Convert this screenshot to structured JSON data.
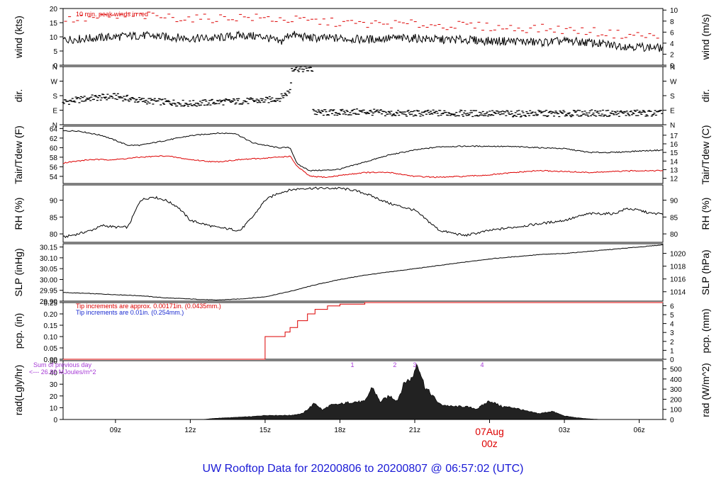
{
  "title": "UW Rooftop Data for 20200806  to  20200807 @ 06:57:02  (UTC)",
  "colors": {
    "ink": "#000000",
    "red": "#dd0000",
    "blue": "#1a2ad0",
    "purple": "#a63ad6",
    "title": "#1a1ad6"
  },
  "x_axis": {
    "ticks": [
      {
        "hour": 9,
        "label": "09z"
      },
      {
        "hour": 12,
        "label": "12z"
      },
      {
        "hour": 15,
        "label": "15z"
      },
      {
        "hour": 18,
        "label": "18z"
      },
      {
        "hour": 21,
        "label": "21z"
      },
      {
        "hour": 24,
        "label": "00z"
      },
      {
        "hour": 27,
        "label": "03z"
      },
      {
        "hour": 30,
        "label": "06z"
      }
    ],
    "date_label": "07Aug",
    "range_hours": [
      6.9,
      30.95
    ]
  },
  "chart_data": [
    {
      "id": "wind",
      "type": "line",
      "ylabel_left": "wind (kts)",
      "ylabel_right": "wind (m/s)",
      "ylim": [
        0,
        20
      ],
      "left_ticks": [
        0,
        5,
        10,
        15,
        20
      ],
      "right_ticks": [
        0,
        2,
        4,
        6,
        8,
        10
      ],
      "right_factor": 0.5144,
      "note": "10 min. peak winds in red",
      "series": [
        {
          "name": "wind",
          "color": "#000000",
          "style": "line",
          "x": [
            6.9,
            8,
            9,
            10,
            11,
            12,
            13,
            14,
            15,
            15.6,
            16,
            16.5,
            17,
            18,
            19,
            20,
            21,
            22,
            23,
            24,
            25,
            26,
            27,
            28,
            29,
            30,
            30.95
          ],
          "y": [
            9,
            9.5,
            10,
            10.5,
            10,
            9.5,
            9.5,
            10.5,
            10,
            8,
            11,
            10,
            9.5,
            9.5,
            9,
            9.5,
            9.5,
            9,
            9,
            8.5,
            8.5,
            8,
            8.5,
            8,
            7,
            6.5,
            6
          ]
        },
        {
          "name": "peak",
          "color": "#dd0000",
          "style": "dash",
          "x": [
            7,
            8,
            9,
            10,
            11,
            12,
            13,
            14,
            15,
            16,
            17,
            18,
            19,
            20,
            21,
            22,
            23,
            24,
            25,
            26,
            27,
            28,
            29,
            30,
            30.9
          ],
          "y": [
            16,
            16.5,
            17,
            17.5,
            17,
            16.5,
            16.5,
            17,
            16.5,
            16,
            15.5,
            15,
            14.5,
            14.5,
            14.5,
            14,
            14,
            13.5,
            13,
            13,
            12.5,
            12,
            11,
            10.5,
            10
          ]
        }
      ]
    },
    {
      "id": "dir",
      "type": "scatter",
      "ylabel_left": "dir.",
      "ylabel_right": "dir.",
      "ylim": [
        0,
        360
      ],
      "left_ticks": [
        0,
        90,
        180,
        270,
        360
      ],
      "left_tick_labels": [
        "N",
        "E",
        "S",
        "W",
        "N"
      ],
      "right_ticks": [
        0,
        90,
        180,
        270,
        360
      ],
      "right_tick_labels": [
        "N",
        "E",
        "S",
        "W",
        "N"
      ],
      "series": [
        {
          "name": "direction",
          "color": "#000000",
          "style": "dots",
          "x": [
            6.9,
            8,
            9,
            10,
            11,
            12,
            13,
            14,
            15,
            15.6,
            16,
            16.1,
            17,
            18,
            19,
            20,
            21,
            22,
            23,
            24,
            25,
            26,
            27,
            28,
            29,
            30,
            30.95
          ],
          "y": [
            140,
            165,
            175,
            150,
            140,
            130,
            140,
            145,
            150,
            165,
            210,
            355,
            75,
            75,
            80,
            70,
            70,
            72,
            70,
            70,
            68,
            70,
            68,
            72,
            70,
            72,
            70
          ]
        }
      ]
    },
    {
      "id": "temp",
      "type": "line",
      "ylabel_left": "Tair/Tdew (F)",
      "ylabel_right": "Tair/Tdew (C)",
      "ylim": [
        52.5,
        64.5
      ],
      "left_ticks": [
        54,
        56,
        58,
        60,
        62,
        64
      ],
      "right_ticks": [
        12,
        13,
        14,
        15,
        16,
        17
      ],
      "series": [
        {
          "name": "Tair",
          "color": "#000000",
          "style": "line",
          "x": [
            6.9,
            7.5,
            8,
            8.5,
            9,
            9.5,
            10,
            11,
            12,
            13,
            13.8,
            14.5,
            15,
            15.5,
            16,
            16.3,
            16.8,
            17.5,
            18,
            19,
            20,
            21,
            22,
            23,
            24,
            25,
            26,
            27,
            28,
            29,
            30,
            30.95
          ],
          "y": [
            63.5,
            63.5,
            63,
            62.5,
            61.5,
            60.5,
            60.5,
            61.5,
            62.5,
            63,
            63,
            61,
            60.5,
            60,
            60,
            56.5,
            55.2,
            55.3,
            55.5,
            57,
            58.5,
            59.5,
            60.2,
            60.3,
            60.3,
            60.2,
            60,
            59.8,
            59,
            59,
            59.3,
            59.5
          ]
        },
        {
          "name": "Tdew",
          "color": "#dd0000",
          "style": "line",
          "x": [
            6.9,
            7.5,
            8,
            9,
            10,
            11,
            12,
            13,
            14,
            15,
            16,
            16.3,
            16.8,
            17.5,
            18,
            19,
            20,
            21,
            22,
            23,
            24,
            25,
            26,
            27,
            28,
            29,
            30,
            30.95
          ],
          "y": [
            56.8,
            57.2,
            57.5,
            57.5,
            58,
            58.3,
            57.5,
            57,
            57.5,
            57.8,
            58.2,
            56,
            54,
            53.8,
            54.2,
            54.8,
            54.8,
            54,
            53.8,
            54,
            54.3,
            54.8,
            55.2,
            55,
            54.8,
            55,
            55.2,
            55.2
          ]
        }
      ]
    },
    {
      "id": "rh",
      "type": "line",
      "ylabel_left": "RH (%)",
      "ylabel_right": "RH (%)",
      "ylim": [
        77.5,
        94.5
      ],
      "left_ticks": [
        80,
        85,
        90
      ],
      "right_ticks": [
        80,
        85,
        90
      ],
      "series": [
        {
          "name": "RH",
          "color": "#000000",
          "style": "line",
          "x": [
            6.9,
            7.5,
            8,
            8.5,
            9,
            9.5,
            10,
            10.5,
            11,
            11.5,
            12,
            12.5,
            13,
            13.5,
            14,
            14.5,
            15,
            15.5,
            16,
            16.5,
            17,
            17.5,
            18,
            18.5,
            19,
            19.5,
            20,
            21,
            21.5,
            22,
            23,
            24,
            25,
            25.5,
            26,
            27,
            28,
            29,
            29.5,
            30,
            30.5,
            30.95
          ],
          "y": [
            79,
            80,
            81,
            82.5,
            82,
            82,
            90,
            91,
            90,
            88,
            84,
            83,
            82,
            81.5,
            81,
            85,
            90,
            92,
            93,
            93.5,
            93.5,
            93.5,
            93.5,
            93,
            92,
            90.5,
            89,
            87,
            84,
            81,
            79.5,
            81,
            82,
            82.5,
            83,
            84,
            86,
            86,
            87.5,
            87,
            86,
            86
          ]
        }
      ]
    },
    {
      "id": "slp",
      "type": "line",
      "ylabel_left": "SLP (inHg)",
      "ylabel_right": "SLP (hPa)",
      "ylim": [
        29.9,
        30.165
      ],
      "left_ticks": [
        29.9,
        29.95,
        30.0,
        30.05,
        30.1,
        30.15
      ],
      "left_tick_labels": [
        "29.90",
        "29.95",
        "30.00",
        "30.05",
        "30.10",
        "30.15"
      ],
      "right_ticks": [
        1014,
        1016,
        1018,
        1020
      ],
      "right_factor": 33.8639,
      "series": [
        {
          "name": "SLP",
          "color": "#000000",
          "style": "line",
          "x": [
            6.9,
            8,
            9,
            10,
            11,
            12,
            13,
            14,
            15,
            16,
            17,
            18,
            19,
            20,
            21,
            22,
            23,
            24,
            25,
            26,
            27,
            28,
            29,
            30,
            30.95
          ],
          "y": [
            29.94,
            29.935,
            29.93,
            29.925,
            29.915,
            29.91,
            29.905,
            29.91,
            29.92,
            29.945,
            29.975,
            30.0,
            30.02,
            30.035,
            30.05,
            30.065,
            30.08,
            30.095,
            30.105,
            30.115,
            30.12,
            30.13,
            30.14,
            30.15,
            30.16
          ]
        }
      ]
    },
    {
      "id": "pcp",
      "type": "line",
      "ylabel_left": "pcp. (in)",
      "ylabel_right": "pcp. (mm)",
      "ylim": [
        0,
        0.25
      ],
      "left_ticks": [
        0,
        0.05,
        0.1,
        0.15,
        0.2,
        0.25
      ],
      "left_tick_labels": [
        "0.00",
        "0.05",
        "0.10",
        "0.15",
        "0.20",
        "0.25"
      ],
      "right_ticks": [
        0,
        1,
        2,
        3,
        4,
        5,
        6
      ],
      "right_factor": 25.4,
      "notes": [
        {
          "text": "Tip increments are approx. 0.00171in. (0.0435mm.)",
          "color": "#dd0000"
        },
        {
          "text": "Tip increments are 0.01in. (0.254mm.)",
          "color": "#1a2ad0"
        }
      ],
      "series": [
        {
          "name": "precip",
          "color": "#dd0000",
          "style": "step",
          "x": [
            6.9,
            14.8,
            15.0,
            15.5,
            15.8,
            16.0,
            16.3,
            16.7,
            17.0,
            17.5,
            18.0,
            18.4,
            19.0,
            30.95
          ],
          "y": [
            0,
            0,
            0.1,
            0.1,
            0.12,
            0.14,
            0.17,
            0.2,
            0.22,
            0.235,
            0.243,
            0.243,
            0.25,
            0.25
          ]
        }
      ]
    },
    {
      "id": "rad",
      "type": "area",
      "ylabel_left": "rad(Lgly/hr)",
      "ylabel_right": "rad (W/m^2)",
      "ylim": [
        0,
        50
      ],
      "left_ticks": [
        0,
        10,
        20,
        30,
        40,
        50
      ],
      "right_ticks": [
        0,
        100,
        200,
        300,
        400,
        500
      ],
      "right_factor": 11.622,
      "prev_day_note": [
        "Sum of previous day",
        "<--- 26.92 MJoules/m^2"
      ],
      "markers": [
        {
          "hour": 18.5,
          "label": "1"
        },
        {
          "hour": 20.2,
          "label": "2"
        },
        {
          "hour": 21.0,
          "label": "3"
        },
        {
          "hour": 23.7,
          "label": "4"
        }
      ],
      "series": [
        {
          "name": "radiation",
          "color": "#000000",
          "style": "area",
          "x": [
            12.5,
            13,
            14,
            14.5,
            15,
            15.5,
            16,
            16.5,
            17,
            17.3,
            17.6,
            18,
            18.5,
            19,
            19.3,
            19.6,
            20,
            20.3,
            20.6,
            20.9,
            21.1,
            21.4,
            22,
            22.5,
            23,
            23.5,
            24,
            24.5,
            25,
            25.5,
            26,
            26.5,
            27,
            27.5,
            28,
            28.5
          ],
          "y": [
            0,
            1,
            2,
            2.5,
            3.5,
            3.5,
            3.5,
            5,
            14,
            8,
            12,
            13,
            15,
            15,
            28,
            15,
            20,
            16,
            32,
            35,
            49,
            28,
            13,
            11,
            11,
            9,
            16,
            11,
            10,
            7,
            5,
            7,
            3,
            1.5,
            0.5,
            0
          ]
        }
      ]
    }
  ]
}
